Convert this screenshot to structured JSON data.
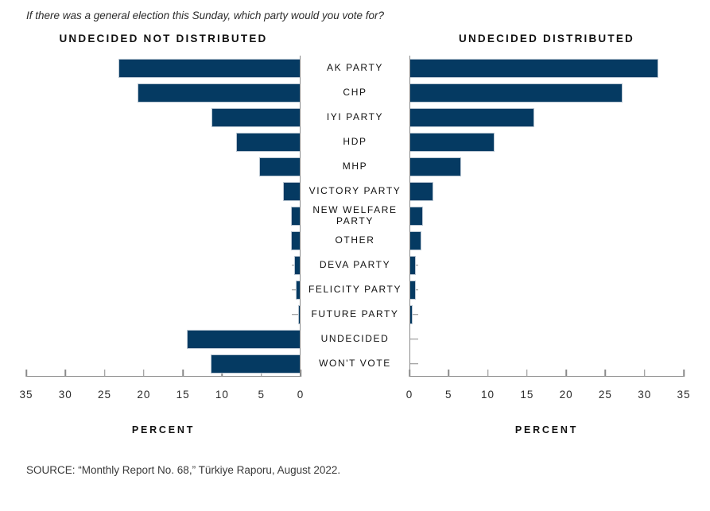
{
  "title": "If there was a general election this Sunday, which party would you vote for?",
  "source": "SOURCE: “Monthly Report No. 68,” Türkiye Raporu, August 2022.",
  "colors": {
    "bar_fill": "#053a62",
    "bar_edge": "#b9c6d2",
    "axis": "#8a8a8a",
    "text": "#1a1a1a"
  },
  "chart_data": {
    "type": "bar",
    "layout": "horizontal back-to-back (butterfly) bar chart, shared category axis in center",
    "categories": [
      "AK PARTY",
      "CHP",
      "IYI PARTY",
      "HDP",
      "MHP",
      "VICTORY PARTY",
      "NEW WELFARE PARTY",
      "OTHER",
      "DEVA PARTY",
      "FELICITY PARTY",
      "FUTURE PARTY",
      "UNDECIDED",
      "WON'T VOTE"
    ],
    "series": [
      {
        "name": "UNDECIDED NOT DISTRIBUTED",
        "side": "left",
        "values": [
          23.2,
          20.8,
          11.3,
          8.1,
          5.2,
          2.1,
          1.1,
          1.1,
          0.7,
          0.5,
          0.2,
          14.5,
          11.4
        ]
      },
      {
        "name": "UNDECIDED DISTRIBUTED",
        "side": "right",
        "values": [
          31.7,
          27.2,
          15.9,
          10.8,
          6.5,
          2.9,
          1.6,
          1.4,
          0.7,
          0.7,
          0.3,
          0,
          0
        ]
      }
    ],
    "xlabel": "PERCENT",
    "xlim": [
      0,
      35
    ],
    "xticks": [
      0,
      5,
      10,
      15,
      20,
      25,
      30,
      35
    ],
    "grid": false,
    "tick_direction": "in"
  }
}
